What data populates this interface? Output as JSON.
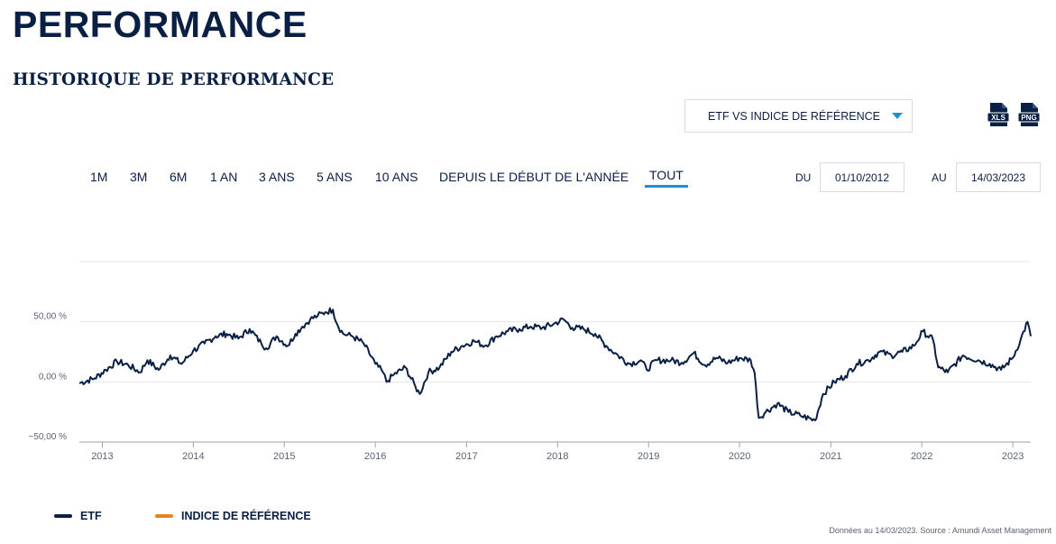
{
  "header": {
    "title": "PERFORMANCE",
    "section_title": "HISTORIQUE DE PERFORMANCE"
  },
  "compare_select": {
    "value": "ETF VS INDICE DE RÉFÉRENCE"
  },
  "exports": [
    {
      "label": "XLS",
      "icon": "xls-file-icon"
    },
    {
      "label": "PNG",
      "icon": "png-file-icon"
    }
  ],
  "periods": {
    "items": [
      "1M",
      "3M",
      "6M",
      "1 AN",
      "3 ANS",
      "5 ANS",
      "10 ANS",
      "DEPUIS LE DÉBUT DE L'ANNÉE",
      "TOUT"
    ],
    "active": "TOUT"
  },
  "date_range": {
    "from_label": "DU",
    "from_value": "01/10/2012",
    "to_label": "AU",
    "to_value": "14/03/2023"
  },
  "colors": {
    "etf": "#0a1f44",
    "benchmark": "#e8821e",
    "accent": "#1e8fd6"
  },
  "chart_data": {
    "type": "line",
    "title": "",
    "xlabel": "",
    "ylabel": "",
    "x_ticks": [
      "2013",
      "2014",
      "2015",
      "2016",
      "2017",
      "2018",
      "2019",
      "2020",
      "2021",
      "2022",
      "2023"
    ],
    "y_ticks": [
      "50,00 %",
      "0,00 %",
      "−50,00 %"
    ],
    "ylim": [
      -50,
      100
    ],
    "xlim": [
      "2012-10-01",
      "2023-03-14"
    ],
    "grid": true,
    "legend_position": "bottom-left",
    "series": [
      {
        "name": "ETF",
        "x": [
          "2012-10-01",
          "2012-12-01",
          "2013-01-15",
          "2013-03-01",
          "2013-04-15",
          "2013-06-01",
          "2013-07-01",
          "2013-08-15",
          "2013-10-01",
          "2013-11-15",
          "2014-01-01",
          "2014-02-15",
          "2014-04-01",
          "2014-05-15",
          "2014-07-01",
          "2014-08-15",
          "2014-10-01",
          "2014-10-20",
          "2014-12-01",
          "2015-01-15",
          "2015-02-15",
          "2015-03-15",
          "2015-04-15",
          "2015-05-15",
          "2015-06-15",
          "2015-07-15",
          "2015-08-01",
          "2015-08-25",
          "2015-10-01",
          "2015-11-15",
          "2016-01-01",
          "2016-02-01",
          "2016-02-15",
          "2016-03-15",
          "2016-05-01",
          "2016-06-10",
          "2016-06-27",
          "2016-08-01",
          "2016-09-15",
          "2016-11-01",
          "2016-12-15",
          "2017-02-01",
          "2017-03-15",
          "2017-05-01",
          "2017-06-15",
          "2017-08-01",
          "2017-09-15",
          "2017-11-01",
          "2017-12-15",
          "2018-01-25",
          "2018-03-01",
          "2018-04-15",
          "2018-06-01",
          "2018-07-15",
          "2018-09-01",
          "2018-10-15",
          "2018-12-01",
          "2018-12-25",
          "2019-02-01",
          "2019-04-01",
          "2019-05-15",
          "2019-07-01",
          "2019-08-15",
          "2019-10-01",
          "2019-11-15",
          "2020-01-01",
          "2020-02-15",
          "2020-03-01",
          "2020-03-18",
          "2020-04-15",
          "2020-06-01",
          "2020-07-15",
          "2020-09-01",
          "2020-10-30",
          "2020-12-01",
          "2021-01-15",
          "2021-03-01",
          "2021-04-15",
          "2021-06-01",
          "2021-07-15",
          "2021-09-01",
          "2021-10-15",
          "2021-12-01",
          "2022-01-05",
          "2022-02-15",
          "2022-03-08",
          "2022-04-15",
          "2022-06-15",
          "2022-08-15",
          "2022-09-30",
          "2022-11-15",
          "2023-01-01",
          "2023-02-01",
          "2023-03-01",
          "2023-03-14"
        ],
        "y": [
          -1,
          3,
          10,
          17,
          14,
          8,
          18,
          10,
          22,
          15,
          26,
          32,
          38,
          40,
          36,
          44,
          32,
          28,
          38,
          30,
          40,
          46,
          52,
          55,
          58,
          60,
          48,
          40,
          38,
          32,
          15,
          8,
          0,
          6,
          12,
          -4,
          -10,
          8,
          12,
          25,
          30,
          34,
          30,
          38,
          42,
          44,
          46,
          45,
          48,
          52,
          45,
          44,
          40,
          30,
          22,
          15,
          18,
          10,
          18,
          18,
          16,
          24,
          14,
          20,
          16,
          20,
          18,
          8,
          -30,
          -25,
          -18,
          -25,
          -28,
          -32,
          -10,
          0,
          5,
          15,
          18,
          25,
          22,
          25,
          30,
          42,
          35,
          12,
          8,
          22,
          18,
          15,
          10,
          20,
          35,
          50,
          38
        ]
      },
      {
        "name": "INDICE DE RÉFÉRENCE",
        "x": [],
        "y": []
      }
    ]
  },
  "footer": {
    "source": "Données au 14/03/2023. Source : Amundi Asset Management"
  }
}
